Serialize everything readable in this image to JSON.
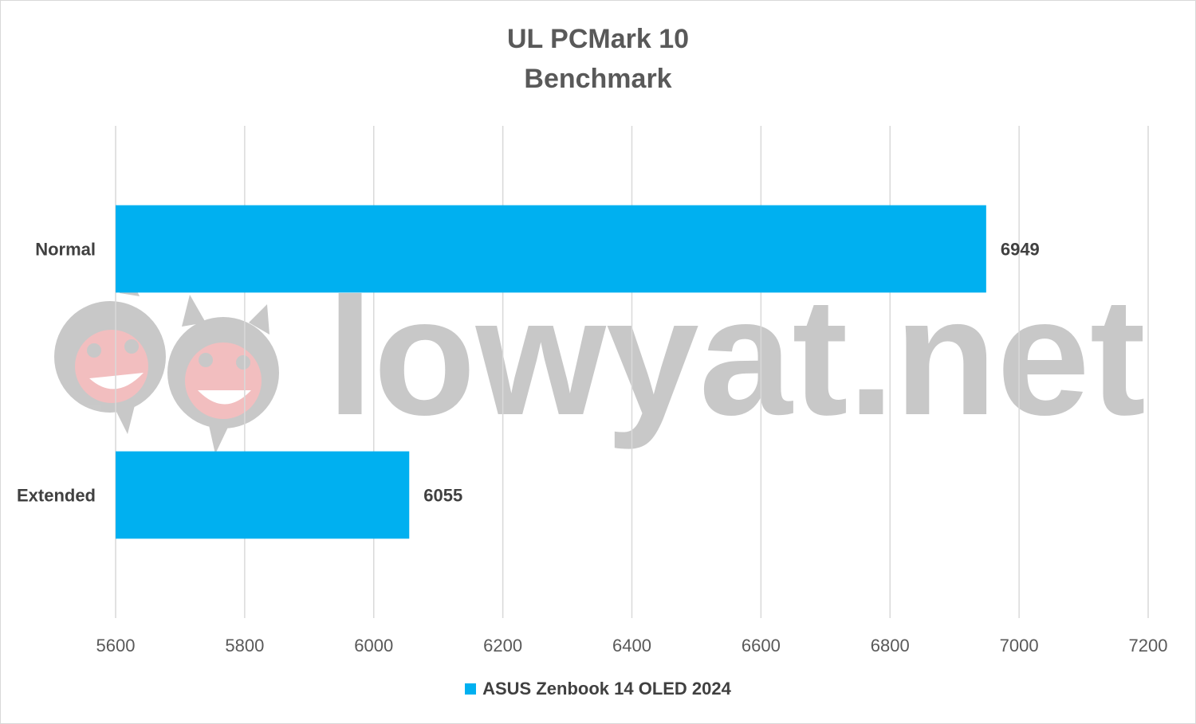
{
  "chart_data": {
    "type": "bar",
    "orientation": "horizontal",
    "title": "UL PCMark 10 Benchmark",
    "title_lines": [
      "UL PCMark 10",
      "Benchmark"
    ],
    "categories": [
      "Normal",
      "Extended"
    ],
    "series": [
      {
        "name": "ASUS Zenbook 14 OLED 2024",
        "values": [
          6949,
          6055
        ],
        "color": "#00B0F0"
      }
    ],
    "xlim": [
      5600,
      7200
    ],
    "xticks": [
      "5600",
      "5800",
      "6000",
      "6200",
      "6400",
      "6600",
      "6800",
      "7000",
      "7200"
    ],
    "grid": "vertical",
    "legend_position": "bottom",
    "watermark": "lowyat.net"
  }
}
